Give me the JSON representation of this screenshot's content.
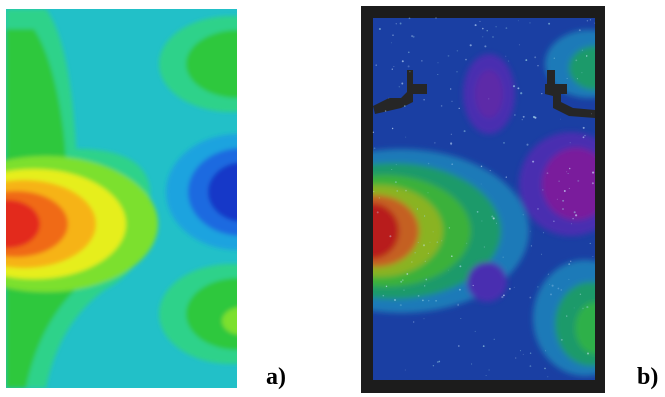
{
  "panels": [
    {
      "caption": "a)"
    },
    {
      "caption": "b)"
    }
  ],
  "colors": {
    "background_a": "#22c0c8",
    "background_b": "#1a3fa3",
    "frame_b": "#1c1c1c"
  }
}
